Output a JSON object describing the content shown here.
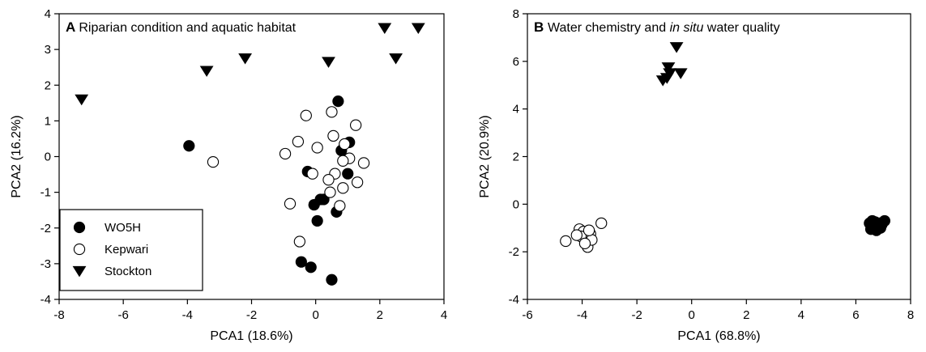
{
  "legend": [
    {
      "name": "WO5H",
      "marker": "filled-circle"
    },
    {
      "name": "Kepwari",
      "marker": "open-circle"
    },
    {
      "name": "Stockton",
      "marker": "down-triangle"
    }
  ],
  "chart_data": [
    {
      "type": "scatter",
      "panel_letter": "A",
      "title": "Riparian condition and aquatic habitat",
      "xlabel": "PCA1 (18.6%)",
      "ylabel": "PCA2 (16.2%)",
      "xlim": [
        -8,
        4
      ],
      "ylim": [
        -4,
        4
      ],
      "xticks": [
        -8,
        -6,
        -4,
        -2,
        0,
        2,
        4
      ],
      "yticks": [
        -4,
        -3,
        -2,
        -1,
        0,
        1,
        2,
        3,
        4
      ],
      "grid": false,
      "legend_position": "bottom-left",
      "series": [
        {
          "name": "WO5H",
          "marker": "filled-circle",
          "color": "#000000",
          "points": [
            [
              -3.95,
              0.3
            ],
            [
              0.7,
              1.55
            ],
            [
              0.8,
              0.17
            ],
            [
              1.05,
              0.4
            ],
            [
              1.0,
              -0.48
            ],
            [
              -0.25,
              -0.42
            ],
            [
              0.25,
              -1.2
            ],
            [
              0.15,
              -1.2
            ],
            [
              -0.05,
              -1.35
            ],
            [
              0.65,
              -1.55
            ],
            [
              0.05,
              -1.8
            ],
            [
              -0.45,
              -2.95
            ],
            [
              -0.15,
              -3.1
            ],
            [
              0.5,
              -3.45
            ]
          ]
        },
        {
          "name": "Kepwari",
          "marker": "open-circle",
          "color": "#000000",
          "points": [
            [
              -3.2,
              -0.15
            ],
            [
              -0.95,
              0.08
            ],
            [
              -0.55,
              0.42
            ],
            [
              -0.3,
              1.15
            ],
            [
              0.05,
              0.25
            ],
            [
              0.5,
              1.25
            ],
            [
              0.55,
              0.58
            ],
            [
              1.25,
              0.88
            ],
            [
              0.9,
              0.35
            ],
            [
              1.5,
              -0.18
            ],
            [
              1.05,
              -0.05
            ],
            [
              0.85,
              -0.12
            ],
            [
              -0.1,
              -0.48
            ],
            [
              0.6,
              -0.48
            ],
            [
              0.4,
              -0.65
            ],
            [
              0.45,
              -1.0
            ],
            [
              0.85,
              -0.88
            ],
            [
              1.3,
              -0.72
            ],
            [
              -0.8,
              -1.32
            ],
            [
              0.75,
              -1.38
            ],
            [
              -0.5,
              -2.38
            ]
          ]
        },
        {
          "name": "Stockton",
          "marker": "down-triangle",
          "color": "#000000",
          "points": [
            [
              -7.3,
              1.6
            ],
            [
              -3.4,
              2.4
            ],
            [
              -2.2,
              2.75
            ],
            [
              0.4,
              2.65
            ],
            [
              2.15,
              3.6
            ],
            [
              3.2,
              3.6
            ],
            [
              2.5,
              2.75
            ]
          ]
        }
      ]
    },
    {
      "type": "scatter",
      "panel_letter": "B",
      "title_parts": [
        "Water chemistry and ",
        "in situ",
        " water quality"
      ],
      "xlabel": "PCA1 (68.8%)",
      "ylabel": "PCA2 (20.9%)",
      "xlim": [
        -6,
        8
      ],
      "ylim": [
        -4,
        8
      ],
      "xticks": [
        -6,
        -4,
        -2,
        0,
        2,
        4,
        6,
        8
      ],
      "yticks": [
        -4,
        -2,
        0,
        2,
        4,
        6,
        8
      ],
      "grid": false,
      "series": [
        {
          "name": "WO5H",
          "marker": "filled-circle",
          "color": "#000000",
          "points": [
            [
              6.5,
              -0.8
            ],
            [
              6.6,
              -0.95
            ],
            [
              6.7,
              -0.75
            ],
            [
              6.8,
              -0.9
            ],
            [
              6.9,
              -1.0
            ],
            [
              7.05,
              -0.7
            ],
            [
              6.55,
              -1.05
            ],
            [
              6.75,
              -1.1
            ],
            [
              6.85,
              -0.8
            ],
            [
              6.6,
              -0.7
            ],
            [
              6.95,
              -0.85
            ]
          ]
        },
        {
          "name": "Kepwari",
          "marker": "open-circle",
          "color": "#000000",
          "points": [
            [
              -4.6,
              -1.55
            ],
            [
              -4.1,
              -1.05
            ],
            [
              -3.95,
              -1.15
            ],
            [
              -3.85,
              -1.45
            ],
            [
              -3.8,
              -1.8
            ],
            [
              -3.7,
              -1.25
            ],
            [
              -3.65,
              -1.5
            ],
            [
              -3.3,
              -0.8
            ],
            [
              -4.05,
              -1.35
            ],
            [
              -3.9,
              -1.65
            ],
            [
              -3.75,
              -1.1
            ],
            [
              -4.2,
              -1.3
            ]
          ]
        },
        {
          "name": "Stockton",
          "marker": "down-triangle",
          "color": "#000000",
          "points": [
            [
              -0.55,
              6.6
            ],
            [
              -0.85,
              5.75
            ],
            [
              -0.8,
              5.5
            ],
            [
              -0.9,
              5.3
            ],
            [
              -1.05,
              5.2
            ],
            [
              -0.4,
              5.5
            ]
          ]
        }
      ]
    }
  ]
}
